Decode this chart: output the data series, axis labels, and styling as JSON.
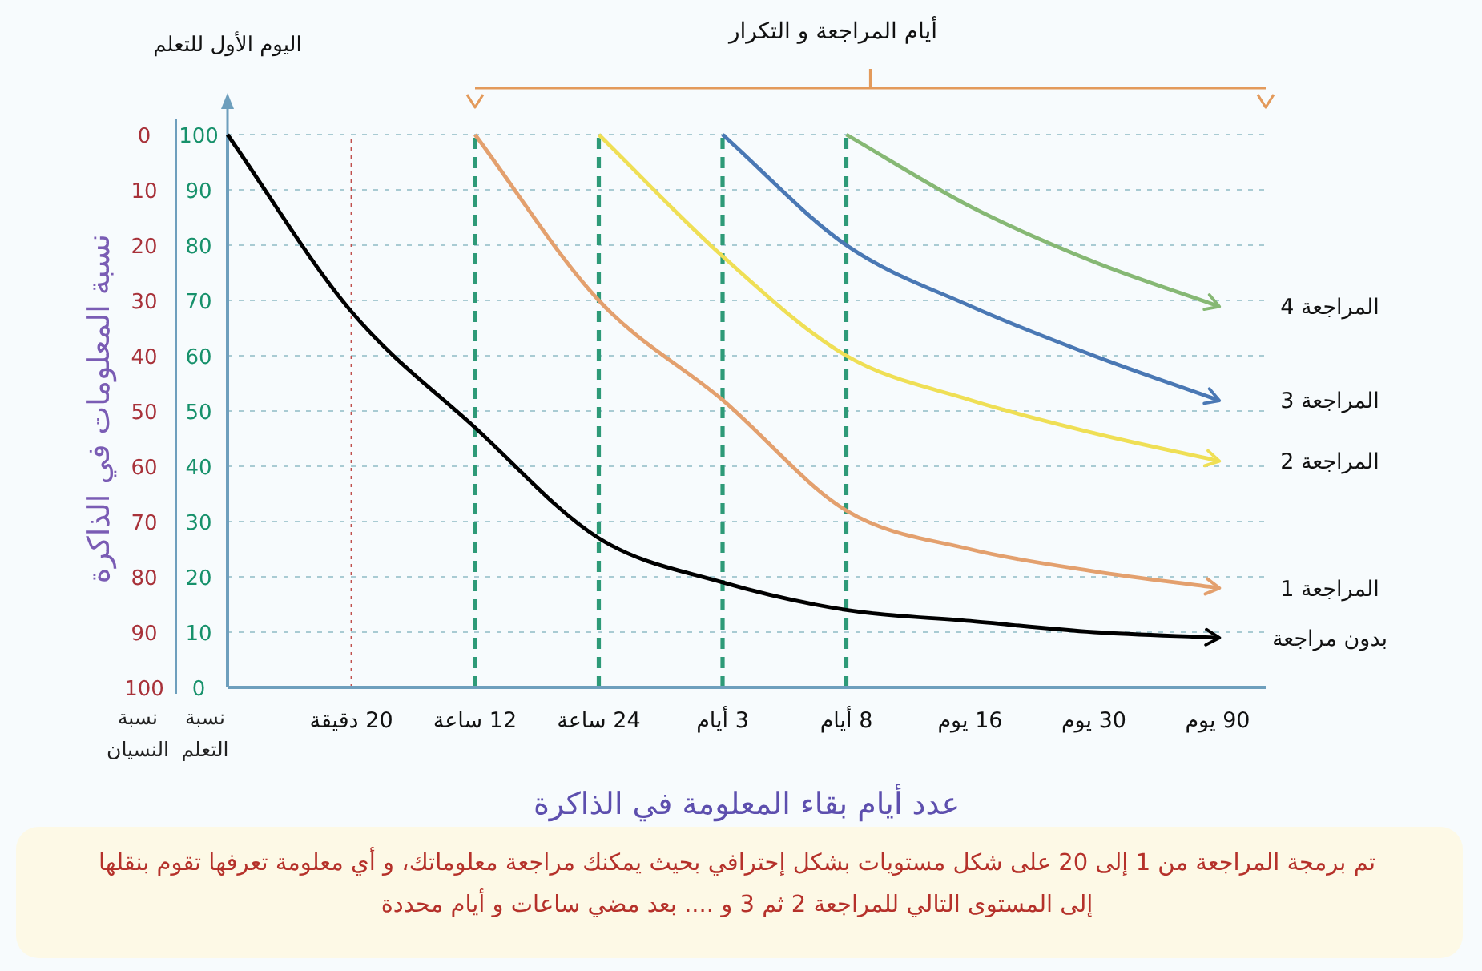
{
  "chart_data": {
    "type": "line",
    "xlabel": "عدد أيام بقاء المعلومة في الذاكرة",
    "ylabel": "نسبة التعلم",
    "y2label": "نسبة النسيان",
    "categories": [
      null,
      "20 دقيقة",
      "12 ساعة",
      "24 ساعة",
      "3 أيام",
      "8 أيام",
      "16 يوم",
      "30 يوم",
      "90 يوم"
    ],
    "series": [
      {
        "name": "بدون مراجعة",
        "color": "#000000",
        "values": [
          100,
          68,
          47,
          27,
          19,
          14,
          12,
          10,
          9
        ]
      },
      {
        "name": "المراجعة 1",
        "color": "#e3a06e",
        "values": [
          null,
          null,
          100,
          70,
          52,
          32,
          25,
          21,
          18
        ]
      },
      {
        "name": "المراجعة 2",
        "color": "#efdf55",
        "values": [
          null,
          null,
          null,
          100,
          78,
          60,
          52,
          46,
          41
        ]
      },
      {
        "name": "المراجعة 3",
        "color": "#4a78b4",
        "values": [
          null,
          null,
          null,
          null,
          100,
          80,
          69,
          60,
          52
        ]
      },
      {
        "name": "المراجعة 4",
        "color": "#86b874",
        "values": [
          null,
          null,
          null,
          null,
          null,
          100,
          87,
          77,
          69
        ]
      }
    ],
    "ylim": [
      0,
      100
    ],
    "yticks": [
      0,
      10,
      20,
      30,
      40,
      50,
      60,
      70,
      80,
      90,
      100
    ],
    "y2lim": [
      100,
      0
    ],
    "y2ticks": [
      0,
      10,
      20,
      30,
      40,
      50,
      60,
      70,
      80,
      90,
      100
    ],
    "grid": "y",
    "ref_lines": [
      {
        "axis": "x",
        "value": "20 دقيقة",
        "color": "#c0504d",
        "line_style": "dotted"
      },
      {
        "axis": "x",
        "value": "12 ساعة",
        "color": "#2e9a78",
        "line_style": "dashed"
      },
      {
        "axis": "x",
        "value": "24 ساعة",
        "color": "#2e9a78",
        "line_style": "dashed"
      },
      {
        "axis": "x",
        "value": "3 أيام",
        "color": "#2e9a78",
        "line_style": "dashed"
      },
      {
        "axis": "x",
        "value": "8 أيام",
        "color": "#2e9a78",
        "line_style": "dashed"
      }
    ],
    "annotations": [
      "اليوم الأول للتعلم",
      "أيام المراجعة و التكرار",
      "نسبة المعلومات في الذاكرة",
      "تم برمجة المراجعة من 1 إلى 20 على شكل مستويات بشكل إحترافي بحيث يمكنك مراجعة معلوماتك، و أي معلومة تعرفها تقوم بنقلها إلى المستوى التالي للمراجعة 2 ثم 3 و .... بعد مضي ساعات و أيام محددة"
    ]
  }
}
